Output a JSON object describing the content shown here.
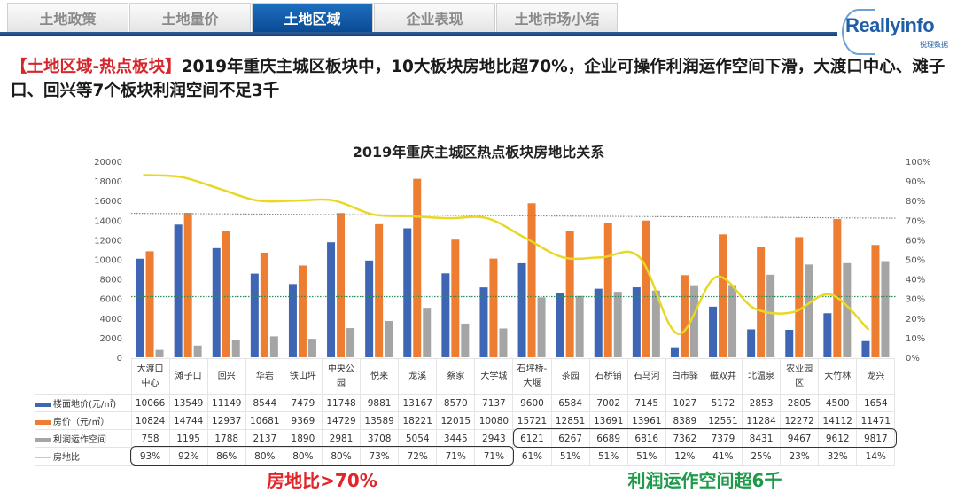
{
  "tabs": [
    "土地政策",
    "土地量价",
    "土地区域",
    "企业表现",
    "土地市场小结"
  ],
  "active_tab": 2,
  "logo": {
    "word": "Reallyinfo",
    "sub": "锐理数据"
  },
  "headline": {
    "tag": "【土地区域-热点板块】",
    "text": "2019年重庆主城区板块中，10大板块房地比超70%，企业可操作利润运作空间下滑，大渡口中心、滩子口、回兴等7个板块利润空间不足3千"
  },
  "callouts": {
    "ratio": "房地比>70%",
    "profit": "利润运作空间超6千"
  },
  "colors": {
    "land": "#3f66b4",
    "house": "#ed7d31",
    "profit": "#a5a5a5",
    "ratio": "#e8d826",
    "ref_high": "#8a8a8a",
    "ref_low": "#2e8b57",
    "callout_red": "#e0262b",
    "callout_green": "#1f9a4a"
  },
  "chart_data": {
    "type": "bar+line",
    "title": "2019年重庆主城区热点板块房地比关系",
    "categories": [
      "大渡口中心",
      "滩子口",
      "回兴",
      "华岩",
      "铁山坪",
      "中央公园",
      "悦来",
      "龙溪",
      "蔡家",
      "大学城",
      "石坪桥-大堰",
      "茶园",
      "石桥铺",
      "石马河",
      "白市驿",
      "磁双井",
      "北温泉",
      "农业园区",
      "大竹林",
      "龙兴"
    ],
    "category_labels": [
      [
        "大渡口",
        "中心"
      ],
      [
        "滩子口"
      ],
      [
        "回兴"
      ],
      [
        "华岩"
      ],
      [
        "铁山坪"
      ],
      [
        "中央公",
        "园"
      ],
      [
        "悦来"
      ],
      [
        "龙溪"
      ],
      [
        "蔡家"
      ],
      [
        "大学城"
      ],
      [
        "石坪桥-",
        "大堰"
      ],
      [
        "茶园"
      ],
      [
        "石桥铺"
      ],
      [
        "石马河"
      ],
      [
        "白市驿"
      ],
      [
        "磁双井"
      ],
      [
        "北温泉"
      ],
      [
        "农业园",
        "区"
      ],
      [
        "大竹林"
      ],
      [
        "龙兴"
      ]
    ],
    "left_axis": {
      "ylim": [
        0,
        20000
      ],
      "ticks": [
        0,
        2000,
        4000,
        6000,
        8000,
        10000,
        12000,
        14000,
        16000,
        18000,
        20000
      ]
    },
    "right_axis": {
      "ylim": [
        0,
        100
      ],
      "ticks": [
        "0%",
        "10%",
        "20%",
        "30%",
        "40%",
        "50%",
        "60%",
        "70%",
        "80%",
        "90%",
        "100%"
      ]
    },
    "series": [
      {
        "name": "楼面地价(元/㎡)",
        "type": "bar",
        "values": [
          10066,
          13549,
          11149,
          8544,
          7479,
          11748,
          9881,
          13167,
          8570,
          7137,
          9600,
          6584,
          7002,
          7145,
          1027,
          5172,
          2853,
          2805,
          4500,
          1654
        ]
      },
      {
        "name": "房价（元/㎡）",
        "type": "bar",
        "values": [
          10824,
          14744,
          12937,
          10681,
          9369,
          14729,
          13589,
          18221,
          12015,
          10080,
          15721,
          12851,
          13691,
          13961,
          8389,
          12551,
          11284,
          12272,
          14112,
          11471
        ]
      },
      {
        "name": "利润运作空间",
        "type": "bar",
        "values": [
          758,
          1195,
          1788,
          2137,
          1890,
          2981,
          3708,
          5054,
          3445,
          2943,
          6121,
          6267,
          6689,
          6816,
          7362,
          7379,
          8431,
          9467,
          9612,
          9817
        ]
      },
      {
        "name": "房地比",
        "type": "line",
        "axis": "right",
        "values": [
          "93%",
          "92%",
          "86%",
          "80%",
          "80%",
          "80%",
          "73%",
          "72%",
          "71%",
          "71%",
          "61%",
          "51%",
          "51%",
          "51%",
          "12%",
          "41%",
          "25%",
          "23%",
          "32%",
          "14%"
        ]
      }
    ],
    "reference_lines": [
      {
        "value": 14700,
        "style": "dotted"
      },
      {
        "value": 6200,
        "style": "dotted"
      }
    ]
  }
}
